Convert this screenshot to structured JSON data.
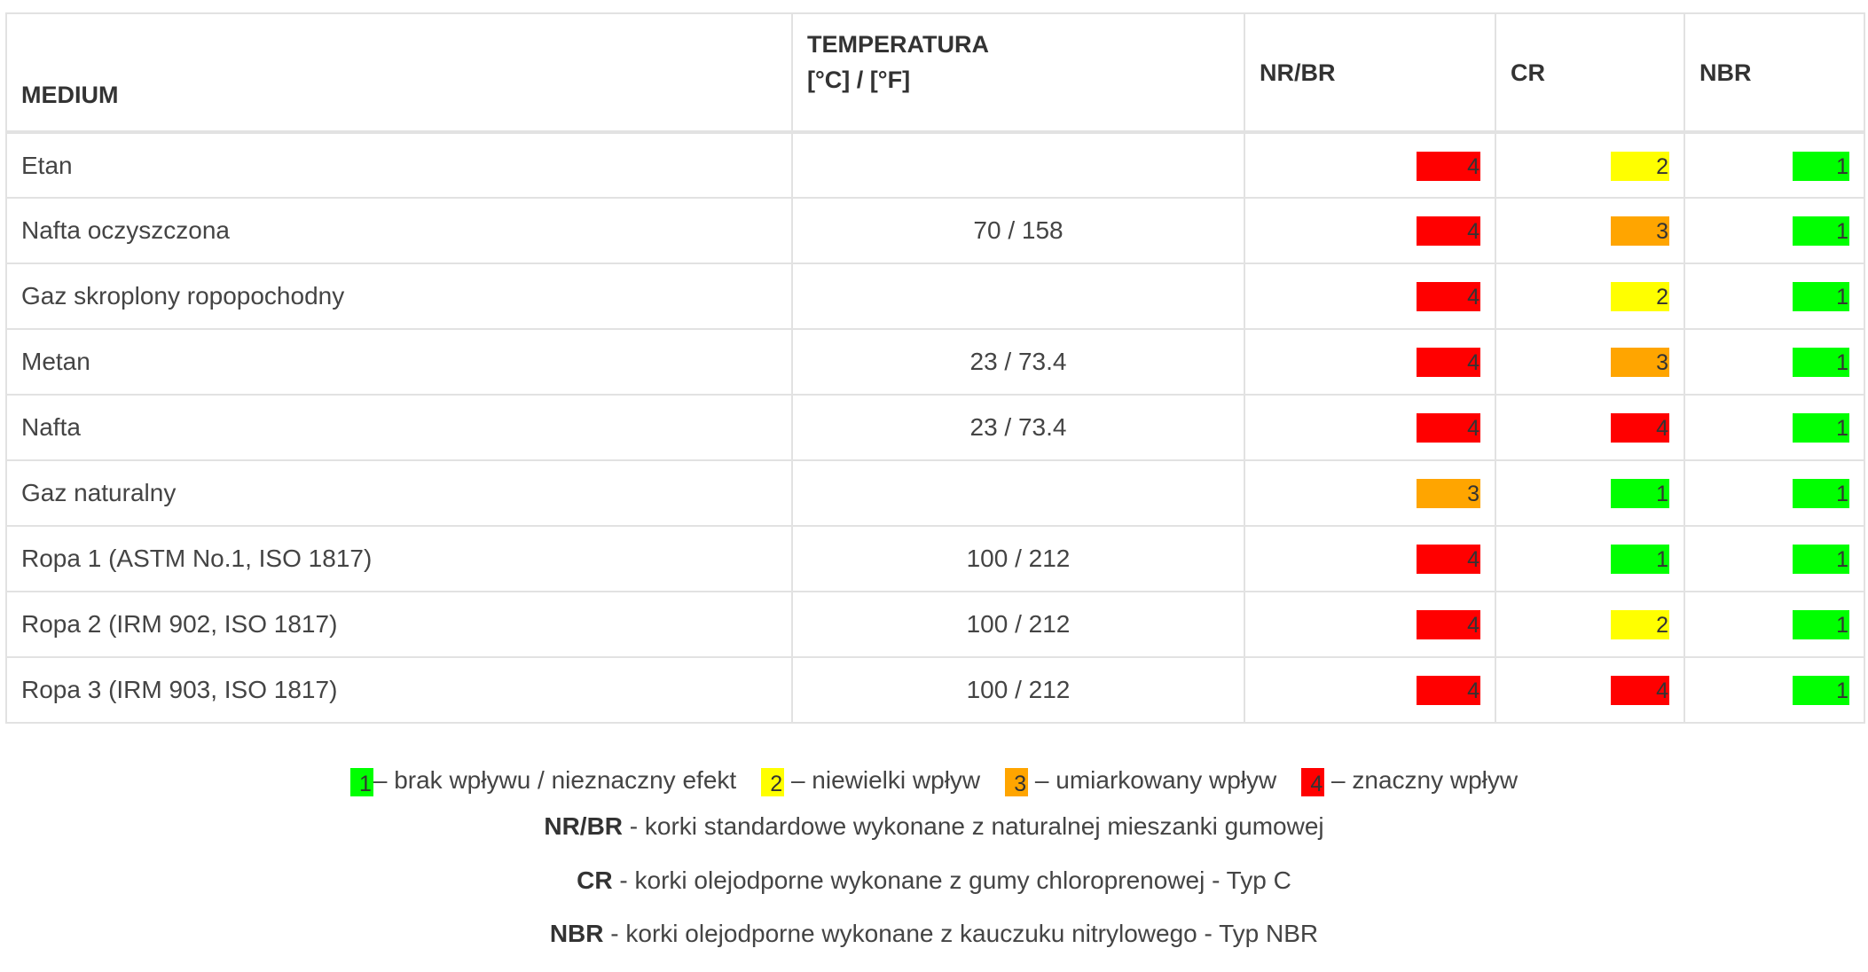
{
  "colors": {
    "level_1": "#00ff00",
    "level_2": "#ffff00",
    "level_3": "#ffa500",
    "level_4": "#ff0000",
    "border": "#e2e2e2"
  },
  "table": {
    "headers": {
      "medium": "MEDIUM",
      "temperature_line1": "TEMPERATURA",
      "temperature_line2": "[°C] / [°F]",
      "nrbr": "NR/BR",
      "cr": "CR",
      "nbr": "NBR"
    },
    "rows": [
      {
        "medium": "Etan",
        "temp": "",
        "nrbr": "4",
        "cr": "2",
        "nbr": "1"
      },
      {
        "medium": "Nafta oczyszczona",
        "temp": "70 / 158",
        "nrbr": "4",
        "cr": "3",
        "nbr": "1"
      },
      {
        "medium": "Gaz skroplony ropopochodny",
        "temp": "",
        "nrbr": "4",
        "cr": "2",
        "nbr": "1"
      },
      {
        "medium": "Metan",
        "temp": "23 / 73.4",
        "nrbr": "4",
        "cr": "3",
        "nbr": "1"
      },
      {
        "medium": "Nafta",
        "temp": "23 / 73.4",
        "nrbr": "4",
        "cr": "4",
        "nbr": "1"
      },
      {
        "medium": "Gaz naturalny",
        "temp": "",
        "nrbr": "3",
        "cr": "1",
        "nbr": "1"
      },
      {
        "medium": "Ropa 1 (ASTM No.1, ISO 1817)",
        "temp": "100 / 212",
        "nrbr": "4",
        "cr": "1",
        "nbr": "1"
      },
      {
        "medium": "Ropa 2 (IRM 902, ISO 1817)",
        "temp": "100 / 212",
        "nrbr": "4",
        "cr": "2",
        "nbr": "1"
      },
      {
        "medium": "Ropa 3 (IRM 903, ISO 1817)",
        "temp": "100 / 212",
        "nrbr": "4",
        "cr": "4",
        "nbr": "1"
      }
    ]
  },
  "legend": {
    "items": [
      {
        "level": "1",
        "text": "– brak wpływu / nieznaczny efekt"
      },
      {
        "level": "2",
        "text": " – niewielki wpływ"
      },
      {
        "level": "3",
        "text": " – umiarkowany wpływ"
      },
      {
        "level": "4",
        "text": " – znaczny wpływ"
      }
    ]
  },
  "notes": [
    {
      "term": "NR/BR",
      "text": " - korki standardowe wykonane z naturalnej mieszanki gumowej"
    },
    {
      "term": "CR",
      "text": " - korki olejodporne wykonane z gumy chloroprenowej - Typ C"
    },
    {
      "term": "NBR",
      "text": " - korki olejodporne wykonane z kauczuku nitrylowego - Typ NBR"
    }
  ]
}
